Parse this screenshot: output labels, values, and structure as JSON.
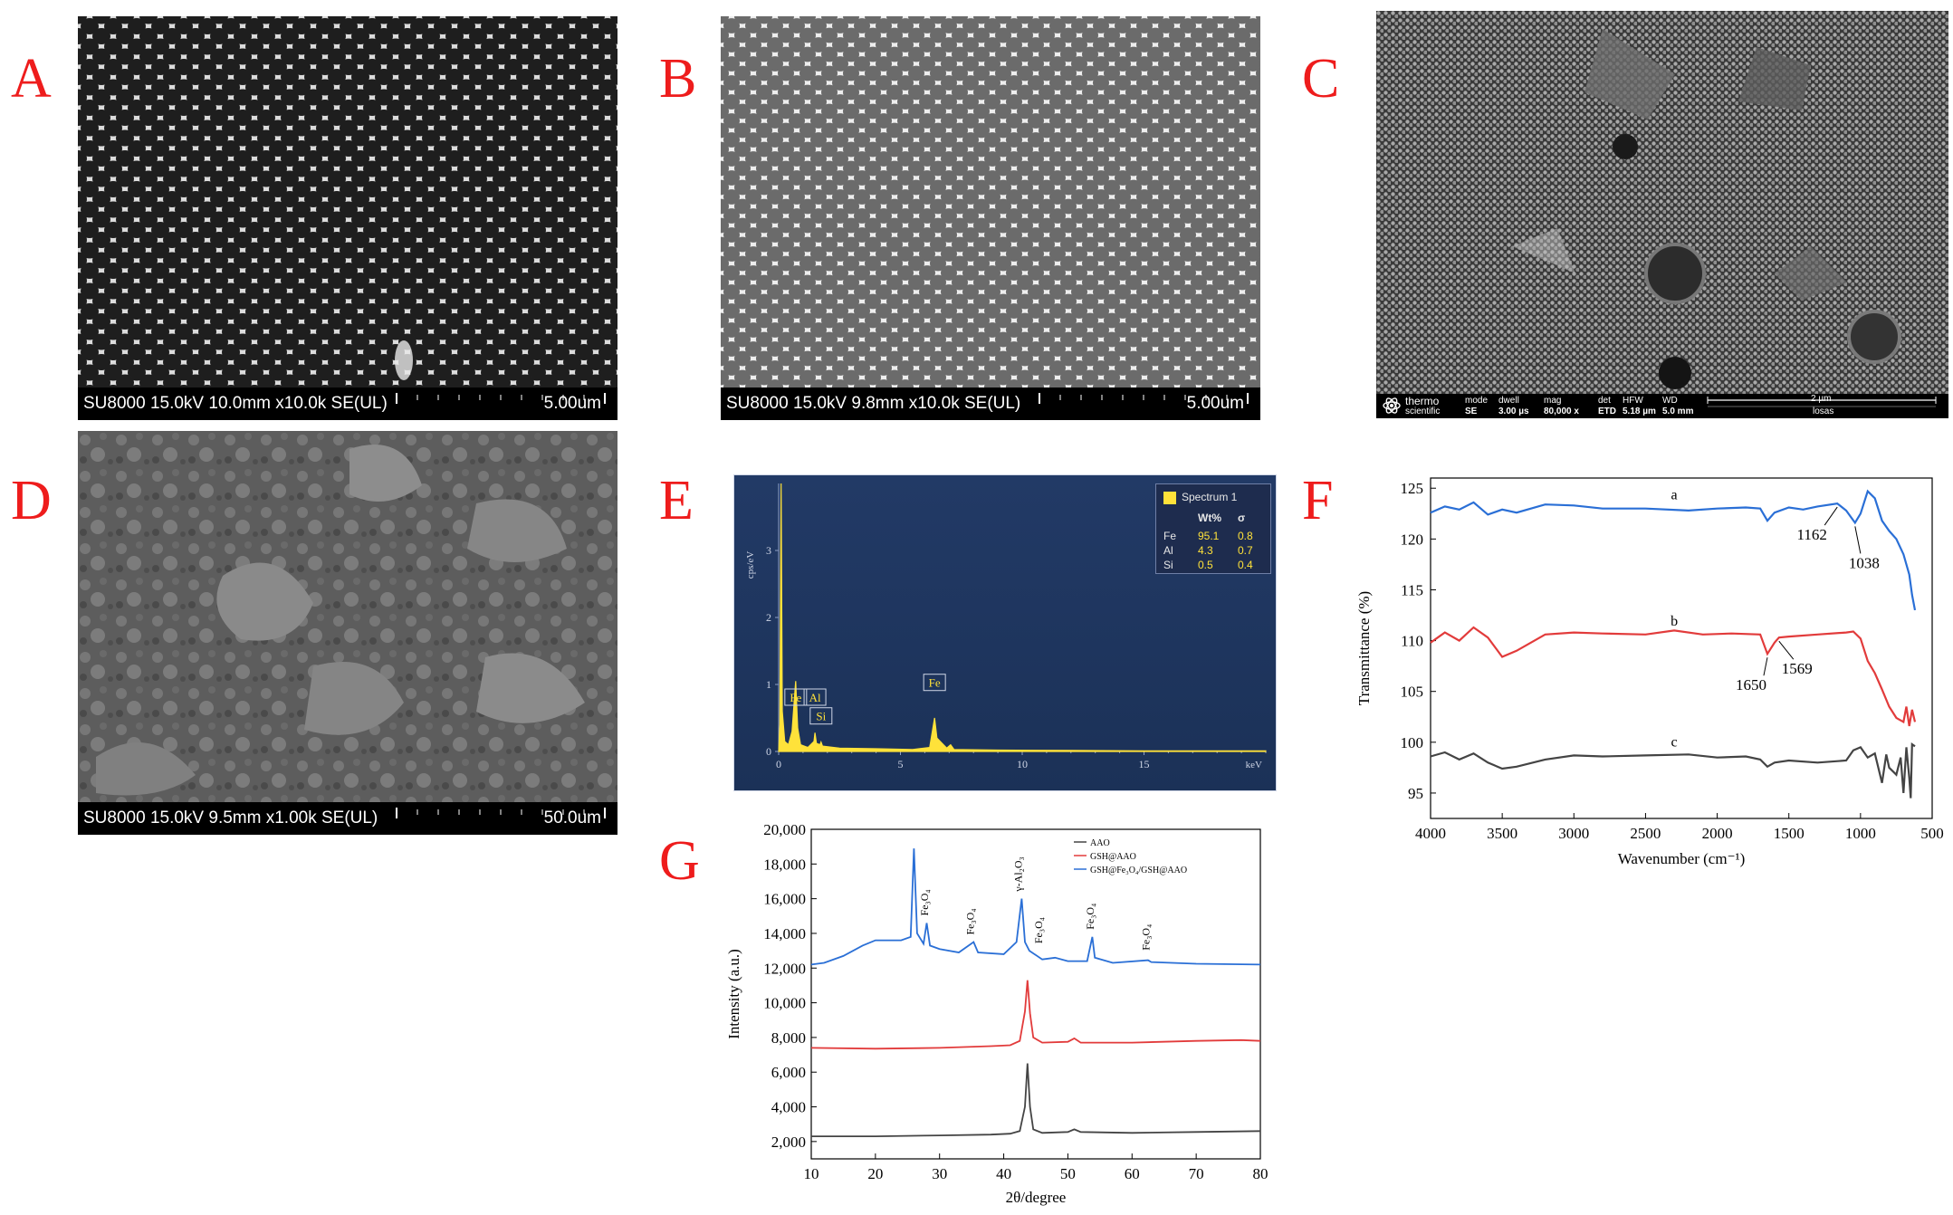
{
  "panels": {
    "A": {
      "label": "A",
      "info": "SU8000 15.0kV 10.0mm x10.0k SE(UL)",
      "scale": "5.00um"
    },
    "B": {
      "label": "B",
      "info": "SU8000 15.0kV 9.8mm x10.0k SE(UL)",
      "scale": "5.00um"
    },
    "C": {
      "label": "C",
      "logo_line1": "thermo",
      "logo_line2": "scientific",
      "bar_headers": [
        "mode",
        "dwell",
        "mag",
        "det",
        "HFW",
        "WD"
      ],
      "bar_values": [
        "SE",
        "3.00 µs",
        "80,000 x",
        "ETD",
        "5.18 µm",
        "5.0 mm"
      ],
      "scale": "2 µm",
      "operator": "losas"
    },
    "D": {
      "label": "D",
      "info": "SU8000 15.0kV 9.5mm x1.00k SE(UL)",
      "scale": "50.0um"
    },
    "E": {
      "label": "E"
    },
    "F": {
      "label": "F"
    },
    "G": {
      "label": "G"
    }
  },
  "colors": {
    "label_red": "#ee1c1c",
    "blue": "#2a6fd6",
    "red": "#e23b3b",
    "dark": "#444444",
    "eds_yellow": "#ffe23a"
  },
  "chart_data": [
    {
      "id": "E",
      "type": "line",
      "xlabel": "keV",
      "ylabel": "cps/eV",
      "x_ticks": [
        0,
        5,
        10,
        15
      ],
      "y_ticks": [
        0,
        1,
        2,
        3
      ],
      "xlim": [
        0,
        20
      ],
      "ylim": [
        0,
        4
      ],
      "spectrum": [
        [
          0.0,
          0
        ],
        [
          0.05,
          0.4
        ],
        [
          0.1,
          4.0
        ],
        [
          0.15,
          0.6
        ],
        [
          0.25,
          0.15
        ],
        [
          0.4,
          0.1
        ],
        [
          0.55,
          0.3
        ],
        [
          0.6,
          0.55
        ],
        [
          0.7,
          1.05
        ],
        [
          0.78,
          0.35
        ],
        [
          0.9,
          0.1
        ],
        [
          1.2,
          0.06
        ],
        [
          1.45,
          0.15
        ],
        [
          1.49,
          0.28
        ],
        [
          1.55,
          0.12
        ],
        [
          1.7,
          0.1
        ],
        [
          1.74,
          0.14
        ],
        [
          1.8,
          0.08
        ],
        [
          2.5,
          0.05
        ],
        [
          4.0,
          0.04
        ],
        [
          5.5,
          0.03
        ],
        [
          6.2,
          0.06
        ],
        [
          6.4,
          0.5
        ],
        [
          6.5,
          0.2
        ],
        [
          6.9,
          0.05
        ],
        [
          7.06,
          0.1
        ],
        [
          7.2,
          0.03
        ],
        [
          9,
          0.02
        ],
        [
          12,
          0.015
        ],
        [
          15,
          0.01
        ],
        [
          20,
          0.01
        ]
      ],
      "peak_labels": [
        {
          "text": "Fe",
          "x": 0.7,
          "y": 0.5
        },
        {
          "text": "Al",
          "x": 1.49,
          "y": 0.5
        },
        {
          "text": "Si",
          "x": 1.74,
          "y": 0.22
        },
        {
          "text": "Fe",
          "x": 6.4,
          "y": 0.72
        }
      ],
      "legend": {
        "title": "Spectrum 1",
        "col_wt": "Wt%",
        "col_sigma": "σ",
        "rows": [
          {
            "el": "Fe",
            "wt": "95.1",
            "sigma": "0.8"
          },
          {
            "el": "Al",
            "wt": "4.3",
            "sigma": "0.7"
          },
          {
            "el": "Si",
            "wt": "0.5",
            "sigma": "0.4"
          }
        ]
      }
    },
    {
      "id": "F",
      "type": "line",
      "xlabel": "Wavenumber (cm⁻¹)",
      "ylabel": "Transmittance (%)",
      "xlim": [
        4000,
        500
      ],
      "ylim": [
        92.5,
        126
      ],
      "x_ticks": [
        4000,
        3500,
        3000,
        2500,
        2000,
        1500,
        1000,
        500
      ],
      "y_ticks": [
        95,
        100,
        105,
        110,
        115,
        120,
        125
      ],
      "series": [
        {
          "name": "a",
          "color": "#2a6fd6",
          "points": [
            [
              4000,
              122.6
            ],
            [
              3900,
              123.2
            ],
            [
              3800,
              122.9
            ],
            [
              3700,
              123.6
            ],
            [
              3600,
              122.4
            ],
            [
              3500,
              122.9
            ],
            [
              3400,
              122.6
            ],
            [
              3200,
              123.4
            ],
            [
              3000,
              123.3
            ],
            [
              2800,
              123.0
            ],
            [
              2500,
              123.0
            ],
            [
              2200,
              122.8
            ],
            [
              2000,
              123.0
            ],
            [
              1800,
              123.1
            ],
            [
              1700,
              123.0
            ],
            [
              1650,
              121.8
            ],
            [
              1600,
              122.6
            ],
            [
              1500,
              123.1
            ],
            [
              1400,
              122.9
            ],
            [
              1300,
              123.2
            ],
            [
              1162,
              123.5
            ],
            [
              1100,
              122.8
            ],
            [
              1038,
              121.6
            ],
            [
              1000,
              122.5
            ],
            [
              950,
              124.7
            ],
            [
              900,
              124.0
            ],
            [
              850,
              121.8
            ],
            [
              800,
              120.8
            ],
            [
              750,
              120.0
            ],
            [
              700,
              118.5
            ],
            [
              660,
              116.5
            ],
            [
              640,
              114.5
            ],
            [
              620,
              113.0
            ]
          ]
        },
        {
          "name": "b",
          "color": "#e23b3b",
          "points": [
            [
              4000,
              109.8
            ],
            [
              3900,
              110.8
            ],
            [
              3800,
              110.0
            ],
            [
              3700,
              111.3
            ],
            [
              3600,
              110.3
            ],
            [
              3500,
              108.4
            ],
            [
              3400,
              109.0
            ],
            [
              3200,
              110.6
            ],
            [
              3000,
              110.8
            ],
            [
              2800,
              110.7
            ],
            [
              2500,
              110.6
            ],
            [
              2300,
              111.0
            ],
            [
              2100,
              110.6
            ],
            [
              1900,
              110.7
            ],
            [
              1700,
              110.6
            ],
            [
              1650,
              108.7
            ],
            [
              1600,
              109.8
            ],
            [
              1569,
              110.3
            ],
            [
              1500,
              110.4
            ],
            [
              1300,
              110.6
            ],
            [
              1100,
              110.8
            ],
            [
              1050,
              110.9
            ],
            [
              1000,
              110.2
            ],
            [
              950,
              108.0
            ],
            [
              900,
              106.8
            ],
            [
              850,
              105.2
            ],
            [
              800,
              103.5
            ],
            [
              750,
              102.4
            ],
            [
              700,
              102.0
            ],
            [
              680,
              103.5
            ],
            [
              660,
              101.6
            ],
            [
              640,
              103.2
            ],
            [
              620,
              102.0
            ]
          ]
        },
        {
          "name": "c",
          "color": "#444444",
          "points": [
            [
              4000,
              98.6
            ],
            [
              3900,
              99.0
            ],
            [
              3800,
              98.3
            ],
            [
              3700,
              98.9
            ],
            [
              3600,
              98.0
            ],
            [
              3500,
              97.4
            ],
            [
              3400,
              97.6
            ],
            [
              3200,
              98.3
            ],
            [
              3000,
              98.7
            ],
            [
              2800,
              98.6
            ],
            [
              2500,
              98.7
            ],
            [
              2200,
              98.8
            ],
            [
              2000,
              98.5
            ],
            [
              1800,
              98.6
            ],
            [
              1700,
              98.3
            ],
            [
              1650,
              97.6
            ],
            [
              1600,
              98.0
            ],
            [
              1500,
              98.2
            ],
            [
              1300,
              98.0
            ],
            [
              1100,
              98.2
            ],
            [
              1050,
              99.2
            ],
            [
              1000,
              99.5
            ],
            [
              950,
              98.5
            ],
            [
              900,
              98.9
            ],
            [
              850,
              96.0
            ],
            [
              820,
              98.8
            ],
            [
              800,
              97.5
            ],
            [
              750,
              96.8
            ],
            [
              720,
              98.5
            ],
            [
              700,
              95.0
            ],
            [
              680,
              99.5
            ],
            [
              660,
              96.5
            ],
            [
              650,
              94.5
            ],
            [
              640,
              99.8
            ],
            [
              620,
              99.6
            ]
          ]
        }
      ],
      "annotations": [
        {
          "text": "1162",
          "x": 1162,
          "y": 123.5
        },
        {
          "text": "1038",
          "x": 1038,
          "y": 121.6
        },
        {
          "text": "1650",
          "x": 1650,
          "y": 108.7
        },
        {
          "text": "1569",
          "x": 1569,
          "y": 110.3
        }
      ]
    },
    {
      "id": "G",
      "type": "line",
      "xlabel": "2θ/degree",
      "ylabel": "Intensity (a.u.)",
      "xlim": [
        10,
        80
      ],
      "ylim": [
        1000,
        20000
      ],
      "x_ticks": [
        10,
        20,
        30,
        40,
        50,
        60,
        70,
        80
      ],
      "y_ticks": [
        2000,
        4000,
        6000,
        8000,
        10000,
        12000,
        14000,
        16000,
        18000,
        20000
      ],
      "series": [
        {
          "name": "AAO",
          "color": "#444444",
          "points": [
            [
              10,
              2300
            ],
            [
              20,
              2300
            ],
            [
              30,
              2350
            ],
            [
              38,
              2400
            ],
            [
              41,
              2450
            ],
            [
              42.5,
              2600
            ],
            [
              43.3,
              4000
            ],
            [
              43.7,
              6500
            ],
            [
              44.1,
              4000
            ],
            [
              44.6,
              2700
            ],
            [
              46,
              2500
            ],
            [
              50,
              2550
            ],
            [
              51,
              2700
            ],
            [
              52,
              2550
            ],
            [
              60,
              2500
            ],
            [
              70,
              2550
            ],
            [
              80,
              2600
            ]
          ]
        },
        {
          "name": "GSH@AAO",
          "color": "#e23b3b",
          "points": [
            [
              10,
              7400
            ],
            [
              20,
              7350
            ],
            [
              30,
              7400
            ],
            [
              38,
              7500
            ],
            [
              41,
              7550
            ],
            [
              42.5,
              7800
            ],
            [
              43.3,
              9500
            ],
            [
              43.7,
              11300
            ],
            [
              44.1,
              9400
            ],
            [
              44.6,
              8000
            ],
            [
              46,
              7700
            ],
            [
              50,
              7750
            ],
            [
              51,
              7950
            ],
            [
              52,
              7700
            ],
            [
              60,
              7700
            ],
            [
              70,
              7800
            ],
            [
              77,
              7850
            ],
            [
              80,
              7800
            ]
          ]
        },
        {
          "name": "GSH@Fe₃O₄/GSH@AAO",
          "color": "#2a6fd6",
          "points": [
            [
              10,
              12200
            ],
            [
              12,
              12300
            ],
            [
              15,
              12700
            ],
            [
              18,
              13300
            ],
            [
              20,
              13600
            ],
            [
              24,
              13600
            ],
            [
              25.5,
              13800
            ],
            [
              26,
              18900
            ],
            [
              26.5,
              14000
            ],
            [
              27.5,
              13400
            ],
            [
              28,
              14600
            ],
            [
              28.5,
              13300
            ],
            [
              30,
              13100
            ],
            [
              33,
              12900
            ],
            [
              35.3,
              13500
            ],
            [
              36,
              12900
            ],
            [
              40,
              12800
            ],
            [
              42,
              13500
            ],
            [
              42.8,
              16000
            ],
            [
              43.3,
              13500
            ],
            [
              44,
              13000
            ],
            [
              46,
              12500
            ],
            [
              48,
              12600
            ],
            [
              50,
              12400
            ],
            [
              53,
              12400
            ],
            [
              53.8,
              13800
            ],
            [
              54.2,
              12600
            ],
            [
              57,
              12300
            ],
            [
              62.5,
              12450
            ],
            [
              63,
              12350
            ],
            [
              70,
              12250
            ],
            [
              80,
              12200
            ]
          ]
        }
      ],
      "peak_labels": [
        {
          "text": "Fe₃O₄",
          "x": 28.2,
          "y": 14600
        },
        {
          "text": "Fe₃O₄",
          "x": 35.3,
          "y": 13500
        },
        {
          "text": "γ-Al₂O₃",
          "x": 42.8,
          "y": 16000
        },
        {
          "text": "Fe₃O₄",
          "x": 46.0,
          "y": 13000
        },
        {
          "text": "Fe₃O₄",
          "x": 54.0,
          "y": 13800
        },
        {
          "text": "Fe₃O₄",
          "x": 62.7,
          "y": 12600
        }
      ],
      "legend_position": "top-left"
    }
  ]
}
